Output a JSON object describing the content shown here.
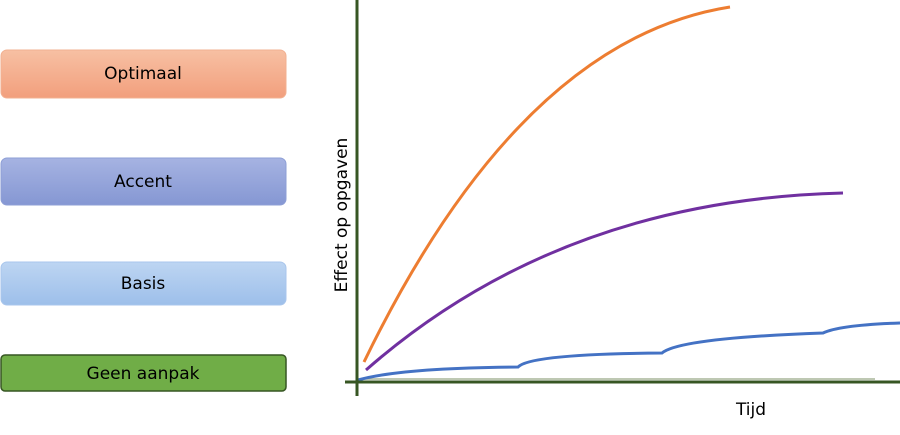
{
  "legend": [
    "Optimaal",
    "Accent",
    "Basis",
    "Geen aanpak"
  ],
  "axes": {
    "y_label": "Effect op opgaven",
    "x_label": "Tijd"
  }
}
